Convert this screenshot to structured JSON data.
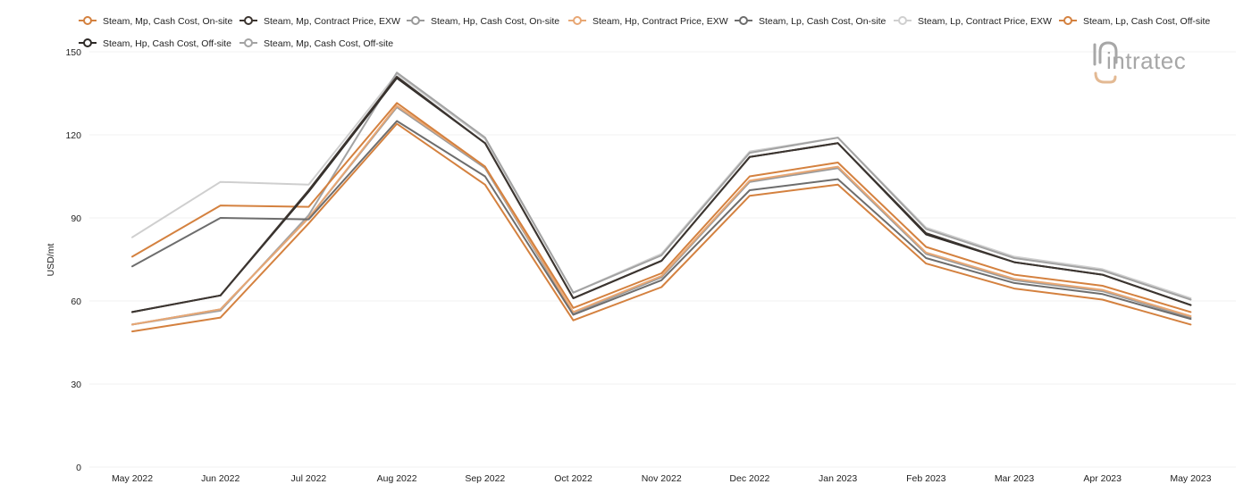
{
  "chart_data": {
    "type": "line",
    "ylabel": "USD/mt",
    "xlabel": "",
    "ylim": [
      0,
      150
    ],
    "yticks": [
      0,
      30,
      60,
      90,
      120,
      150
    ],
    "grid": "horizontal",
    "legend_position": "top",
    "categories": [
      "May 2022",
      "Jun 2022",
      "Jul 2022",
      "Aug 2022",
      "Sep 2022",
      "Oct 2022",
      "Nov 2022",
      "Dec 2022",
      "Jan 2023",
      "Feb 2023",
      "Mar 2023",
      "Apr 2023",
      "May 2023"
    ],
    "series": [
      {
        "name": "Steam, Mp, Cash Cost, On-site",
        "color": "#d4813f",
        "values": [
          76,
          94.5,
          94,
          131.5,
          108.5,
          57.5,
          70,
          105,
          110,
          79.5,
          69.5,
          65.5,
          56
        ]
      },
      {
        "name": "Steam, Mp, Contract Price, EXW",
        "color": "#3c3530",
        "values": [
          56,
          62,
          100,
          141,
          117,
          61,
          74.5,
          112,
          117,
          84.5,
          74,
          69.5,
          58.5
        ]
      },
      {
        "name": "Steam, Hp, Cash Cost, On-site",
        "color": "#9a9a9a",
        "values": [
          51.5,
          57,
          90,
          130,
          108,
          55.5,
          68.5,
          103,
          108,
          77,
          67.5,
          63.5,
          54
        ]
      },
      {
        "name": "Steam, Hp, Contract Price, EXW",
        "color": "#e8a774",
        "values": [
          51.5,
          57,
          90,
          130.5,
          108.5,
          56,
          69,
          103.5,
          108.5,
          77.5,
          68,
          64,
          54.5
        ]
      },
      {
        "name": "Steam, Lp, Cash Cost, On-site",
        "color": "#6d6d6d",
        "values": [
          72.5,
          90,
          89.5,
          125,
          105,
          55,
          67.5,
          100,
          104,
          75.5,
          66.5,
          62.5,
          53.5
        ]
      },
      {
        "name": "Steam, Lp, Contract Price, EXW",
        "color": "#cfcfcf",
        "values": [
          83,
          103,
          102,
          142,
          118.5,
          63,
          77,
          114,
          119,
          86.5,
          76,
          71.5,
          61
        ]
      },
      {
        "name": "Steam, Lp, Cash Cost, Off-site",
        "color": "#d4813f",
        "values": [
          49,
          54,
          88,
          124,
          102,
          53,
          65,
          98,
          102,
          73.5,
          64.5,
          60.5,
          51.5
        ]
      },
      {
        "name": "Steam, Hp, Cash Cost, Off-site",
        "color": "#2e2a27",
        "values": [
          56,
          62,
          99.5,
          140.5,
          117,
          61,
          74.5,
          112,
          117,
          84,
          74,
          69.5,
          58.5
        ]
      },
      {
        "name": "Steam, Mp, Cash Cost, Off-site",
        "color": "#a3a3a3",
        "values": [
          51.5,
          56.5,
          91,
          142.5,
          119,
          63,
          76.5,
          113.5,
          119,
          86,
          75.5,
          71,
          60.5
        ]
      }
    ]
  },
  "logo": {
    "text": "intratec",
    "icon": "intratec-logo-icon"
  }
}
